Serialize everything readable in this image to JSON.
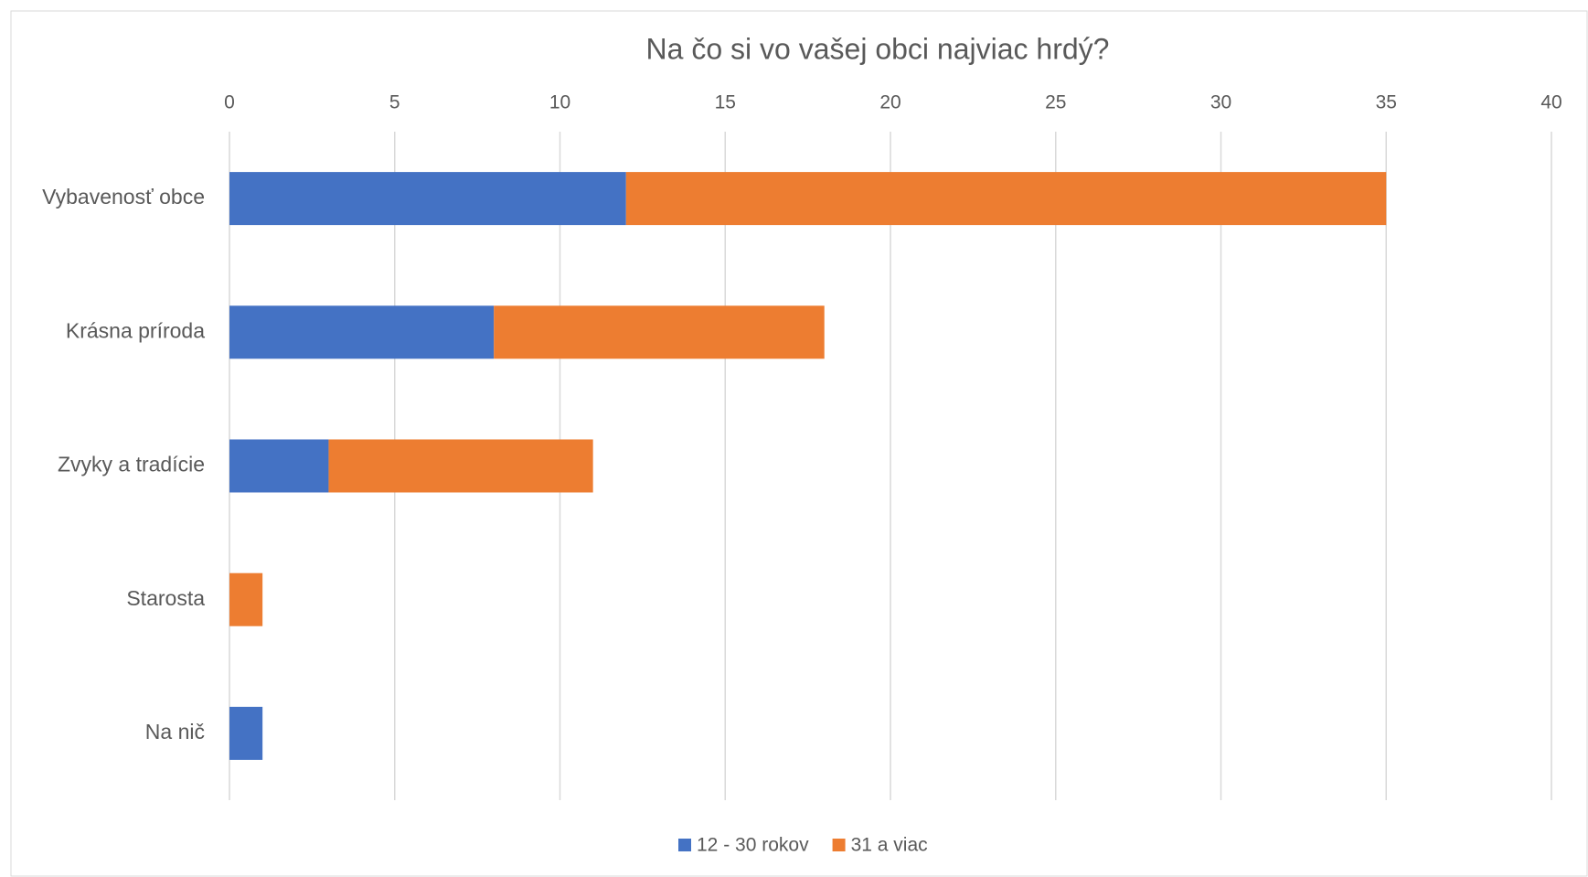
{
  "chart_data": {
    "type": "stacked_bar_horizontal",
    "title": "Na čo si vo vašej obci najviac hrdý?",
    "categories": [
      "Vybavenosť obce",
      "Krásna príroda",
      "Zvyky a tradície",
      "Starosta",
      "Na nič"
    ],
    "series": [
      {
        "name": "12 - 30 rokov",
        "color": "#4472c4",
        "values": [
          12,
          8,
          3,
          0,
          1
        ]
      },
      {
        "name": "31 a viac",
        "color": "#ed7d31",
        "values": [
          23,
          10,
          8,
          1,
          0
        ]
      }
    ],
    "xlim": [
      0,
      40
    ],
    "xticks": [
      0,
      5,
      10,
      15,
      20,
      25,
      30,
      35,
      40
    ],
    "grid": true,
    "legend": "bottom"
  }
}
